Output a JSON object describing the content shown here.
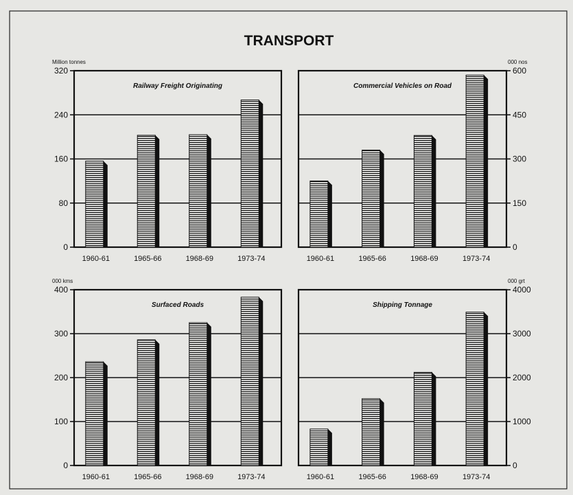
{
  "title": "TRANSPORT",
  "colors": {
    "ink": "#111111",
    "paper": "#e7e7e4",
    "bar_face": "#f4f4f2",
    "bar_stripe": "#111111",
    "bar_shadow": "#111111"
  },
  "chart_data": [
    {
      "type": "bar",
      "title": "Railway Freight Originating",
      "unit": "Million tonnes",
      "axis_side": "left",
      "ylim": [
        0,
        320
      ],
      "yticks": [
        0,
        80,
        160,
        240,
        320
      ],
      "ytick_labels": [
        "0",
        "80",
        "160",
        "240",
        "320"
      ],
      "categories": [
        "1960-61",
        "1965-66",
        "1968-69",
        "1973-74"
      ],
      "values": [
        156,
        203,
        204,
        267
      ],
      "grid": true
    },
    {
      "type": "bar",
      "title": "Commercial Vehicles on Road",
      "unit": "000 nos",
      "axis_side": "right",
      "ylim": [
        0,
        600
      ],
      "yticks": [
        0,
        150,
        300,
        450,
        600
      ],
      "ytick_labels": [
        "0",
        "150",
        "300",
        "450",
        "600"
      ],
      "categories": [
        "1960-61",
        "1965-66",
        "1968-69",
        "1973-74"
      ],
      "values": [
        225,
        330,
        380,
        585
      ],
      "grid": true
    },
    {
      "type": "bar",
      "title": "Surfaced Roads",
      "unit": "000 kms",
      "axis_side": "left",
      "ylim": [
        0,
        400
      ],
      "yticks": [
        0,
        100,
        200,
        300,
        400
      ],
      "ytick_labels": [
        "0",
        "100",
        "200",
        "300",
        "400"
      ],
      "categories": [
        "1960-61",
        "1965-66",
        "1968-69",
        "1973-74"
      ],
      "values": [
        236,
        286,
        325,
        383
      ],
      "grid": true
    },
    {
      "type": "bar",
      "title": "Shipping Tonnage",
      "unit": "000 grt",
      "axis_side": "right",
      "ylim": [
        0,
        4000
      ],
      "yticks": [
        0,
        1000,
        2000,
        3000,
        4000
      ],
      "ytick_labels": [
        "0",
        "1000",
        "2000",
        "3000",
        "4000"
      ],
      "categories": [
        "1960-61",
        "1965-66",
        "1968-69",
        "1973-74"
      ],
      "values": [
        830,
        1520,
        2120,
        3490
      ],
      "grid": true
    }
  ]
}
